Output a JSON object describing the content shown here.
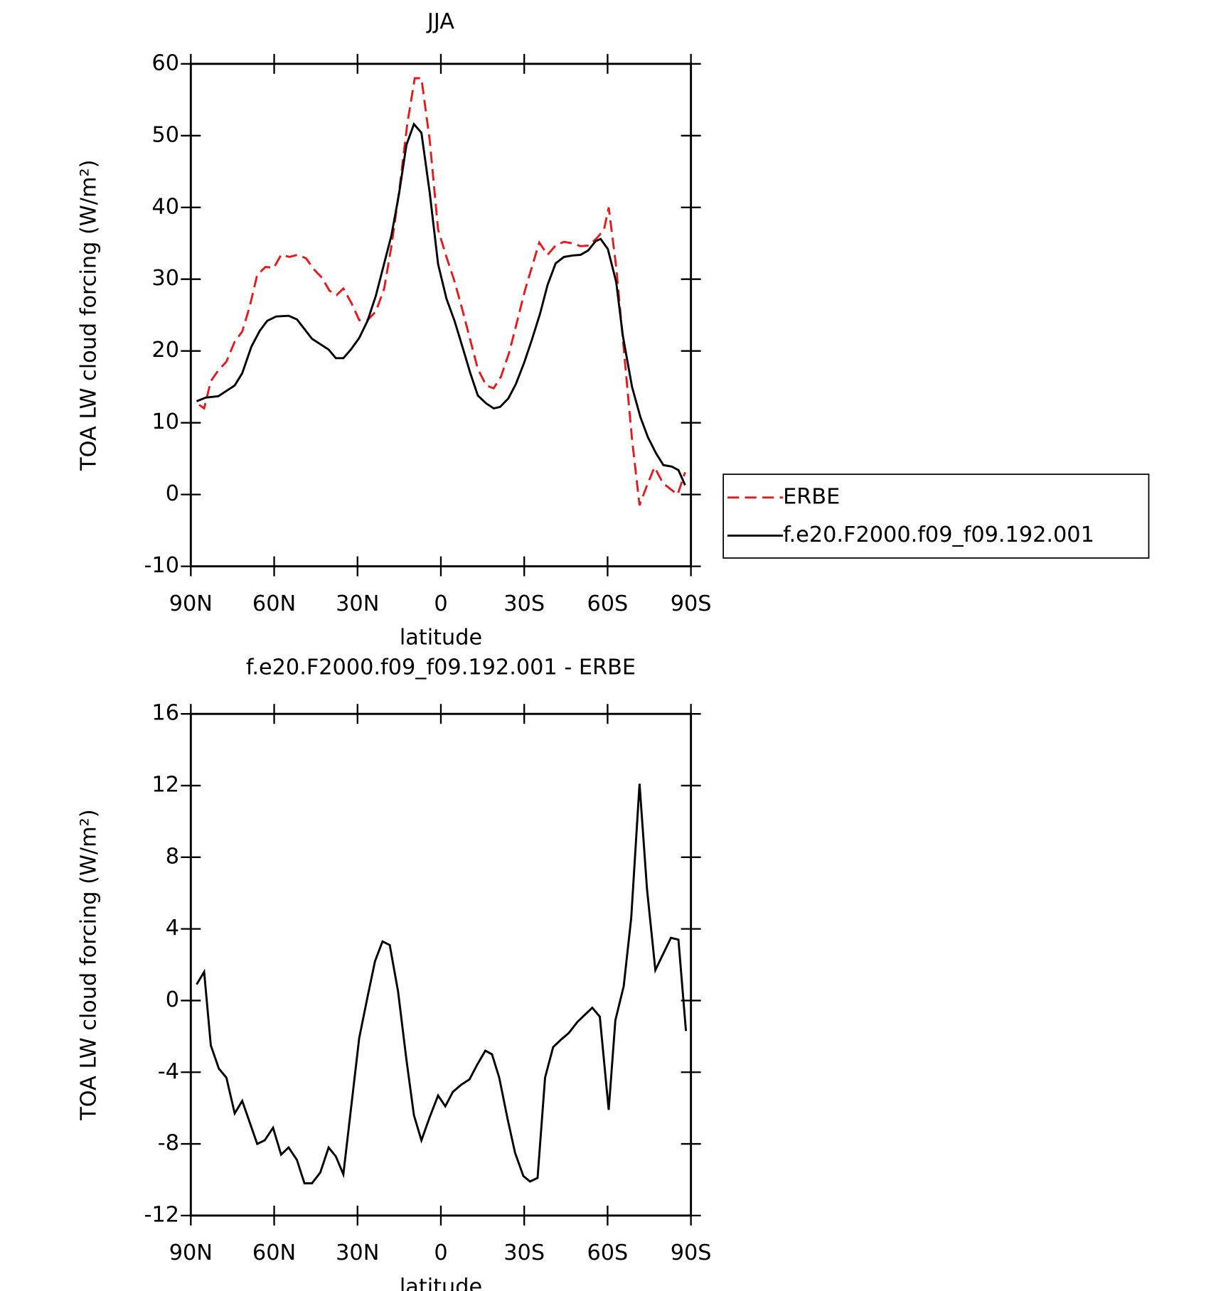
{
  "chart_data": [
    {
      "type": "line",
      "title": "JJA",
      "xlabel": "latitude",
      "ylabel": "TOA LW cloud forcing (W/m²)",
      "xlim": [
        90,
        -90
      ],
      "xticks": [
        {
          "value": 90,
          "label": "90N"
        },
        {
          "value": 60,
          "label": "60N"
        },
        {
          "value": 30,
          "label": "30N"
        },
        0,
        {
          "value": -30,
          "label": "30S"
        },
        {
          "value": -60,
          "label": "60S"
        },
        {
          "value": -90,
          "label": "90S"
        }
      ],
      "ylim": [
        -10,
        60
      ],
      "yticks": [
        -10,
        0,
        10,
        20,
        30,
        40,
        50,
        60
      ],
      "legend": "right",
      "series": [
        {
          "name": "ERBE",
          "color": "#e41a1c",
          "linestyle": "dashed",
          "x": [
            87.0,
            85.2,
            82.8,
            80.1,
            77.2,
            74.2,
            71.5,
            68.8,
            66.1,
            63.1,
            60.1,
            57.5,
            54.5,
            51.5,
            48.5,
            45.8,
            42.8,
            40.1,
            37.5,
            35.1,
            32.1,
            29.4,
            26.4,
            23.4,
            20.4,
            17.8,
            14.8,
            12.1,
            9.4,
            7.0,
            4.0,
            1.0,
            -2.0,
            -5.0,
            -7.9,
            -10.6,
            -13.3,
            -16.3,
            -19.0,
            -21.6,
            -24.6,
            -27.3,
            -30.3,
            -33.0,
            -35.4,
            -38.4,
            -41.3,
            -44.3,
            -47.3,
            -50.3,
            -53.3,
            -56.3,
            -58.7,
            -60.4,
            -63.1,
            -65.8,
            -68.8,
            -71.5,
            -74.2,
            -76.9,
            -79.9,
            -82.5,
            -85.2,
            -87.9
          ],
          "values": [
            12.5,
            12.0,
            15.8,
            17.3,
            18.5,
            21.3,
            22.7,
            26.2,
            30.6,
            31.7,
            31.6,
            33.4,
            33.1,
            33.4,
            32.9,
            31.4,
            30.2,
            28.4,
            27.8,
            28.7,
            26.6,
            24.3,
            24.3,
            25.5,
            28.7,
            34.6,
            42.9,
            51.6,
            58.0,
            58.0,
            49.3,
            36.9,
            33.1,
            29.6,
            25.5,
            21.5,
            17.5,
            15.2,
            14.8,
            16.4,
            19.8,
            23.9,
            28.5,
            32.0,
            35.1,
            33.4,
            34.7,
            35.2,
            35.0,
            34.6,
            34.7,
            35.8,
            36.9,
            40.0,
            31.7,
            20.4,
            7.7,
            -1.5,
            1.3,
            3.8,
            1.6,
            0.8,
            0.0,
            3.1
          ]
        },
        {
          "name": "f.e20.F2000.f09_f09.192.001",
          "color": "#000000",
          "linestyle": "solid",
          "x": [
            87.9,
            84.6,
            80.1,
            74.2,
            71.5,
            68.2,
            65.2,
            62.5,
            59.3,
            54.8,
            51.8,
            49.4,
            46.4,
            40.4,
            37.8,
            35.1,
            32.4,
            29.4,
            26.4,
            23.4,
            20.4,
            17.8,
            15.1,
            12.4,
            9.7,
            7.0,
            4.0,
            1.0,
            -2.0,
            -5.0,
            -7.9,
            -10.6,
            -13.3,
            -16.3,
            -19.0,
            -21.3,
            -24.3,
            -27.0,
            -30.0,
            -32.7,
            -35.7,
            -38.4,
            -41.3,
            -44.3,
            -47.3,
            -50.3,
            -53.0,
            -55.7,
            -57.5,
            -60.1,
            -63.1,
            -65.5,
            -68.8,
            -71.8,
            -74.5,
            -77.5,
            -80.1,
            -83.1,
            -85.5,
            -87.9
          ],
          "values": [
            13.0,
            13.5,
            13.7,
            15.2,
            16.9,
            20.6,
            22.8,
            24.2,
            24.8,
            24.9,
            24.4,
            23.2,
            21.7,
            20.2,
            19.0,
            19.0,
            20.2,
            21.8,
            24.2,
            27.7,
            32.2,
            36.1,
            41.8,
            48.7,
            51.6,
            50.4,
            42.0,
            32.1,
            27.3,
            24.1,
            20.4,
            16.9,
            13.8,
            12.7,
            12.0,
            12.2,
            13.4,
            15.4,
            18.4,
            21.5,
            25.2,
            29.2,
            32.2,
            33.1,
            33.3,
            33.4,
            34.0,
            35.3,
            35.6,
            34.2,
            29.6,
            22.1,
            15.0,
            10.8,
            8.0,
            5.7,
            4.1,
            3.9,
            3.4,
            1.3
          ]
        }
      ]
    },
    {
      "type": "line",
      "title": "f.e20.F2000.f09_f09.192.001 - ERBE",
      "xlabel": "latitude",
      "ylabel": "TOA LW cloud forcing (W/m²)",
      "xlim": [
        90,
        -90
      ],
      "xticks": [
        {
          "value": 90,
          "label": "90N"
        },
        {
          "value": 60,
          "label": "60N"
        },
        {
          "value": 30,
          "label": "30N"
        },
        0,
        {
          "value": -30,
          "label": "30S"
        },
        {
          "value": -60,
          "label": "60S"
        },
        {
          "value": -90,
          "label": "90S"
        }
      ],
      "ylim": [
        -12,
        16
      ],
      "yticks": [
        -12,
        -8,
        -4,
        0,
        4,
        8,
        12,
        16
      ],
      "series": [
        {
          "color": "#000000",
          "linestyle": "solid",
          "x": [
            87.9,
            85.2,
            82.8,
            79.9,
            77.2,
            74.2,
            71.5,
            66.1,
            63.4,
            60.4,
            57.5,
            54.8,
            51.8,
            49.1,
            46.4,
            43.4,
            40.4,
            37.8,
            35.1,
            32.1,
            29.4,
            26.4,
            23.7,
            21.0,
            18.4,
            15.4,
            12.4,
            9.7,
            7.0,
            4.0,
            1.0,
            -1.6,
            -4.3,
            -7.3,
            -10.3,
            -13.0,
            -16.0,
            -18.4,
            -21.0,
            -24.0,
            -26.7,
            -29.7,
            -32.1,
            -34.8,
            -37.5,
            -40.4,
            -43.1,
            -46.1,
            -49.1,
            -51.8,
            -54.5,
            -57.2,
            -60.4,
            -62.8,
            -65.8,
            -68.5,
            -71.5,
            -74.2,
            -77.2,
            -82.8,
            -85.5,
            -88.2
          ],
          "values": [
            0.9,
            1.6,
            -2.5,
            -3.8,
            -4.3,
            -6.3,
            -5.6,
            -8.0,
            -7.8,
            -7.1,
            -8.6,
            -8.2,
            -8.9,
            -10.2,
            -10.2,
            -9.6,
            -8.2,
            -8.7,
            -9.7,
            -5.7,
            -2.1,
            0.2,
            2.2,
            3.3,
            3.1,
            0.5,
            -3.3,
            -6.4,
            -7.8,
            -6.5,
            -5.3,
            -5.9,
            -5.1,
            -4.7,
            -4.4,
            -3.6,
            -2.8,
            -3.0,
            -4.3,
            -6.6,
            -8.5,
            -9.8,
            -10.1,
            -9.9,
            -4.3,
            -2.6,
            -2.2,
            -1.8,
            -1.2,
            -0.8,
            -0.4,
            -0.9,
            -6.1,
            -1.1,
            0.8,
            4.6,
            12.1,
            6.2,
            1.7,
            3.5,
            3.4,
            -1.7
          ]
        }
      ]
    }
  ]
}
